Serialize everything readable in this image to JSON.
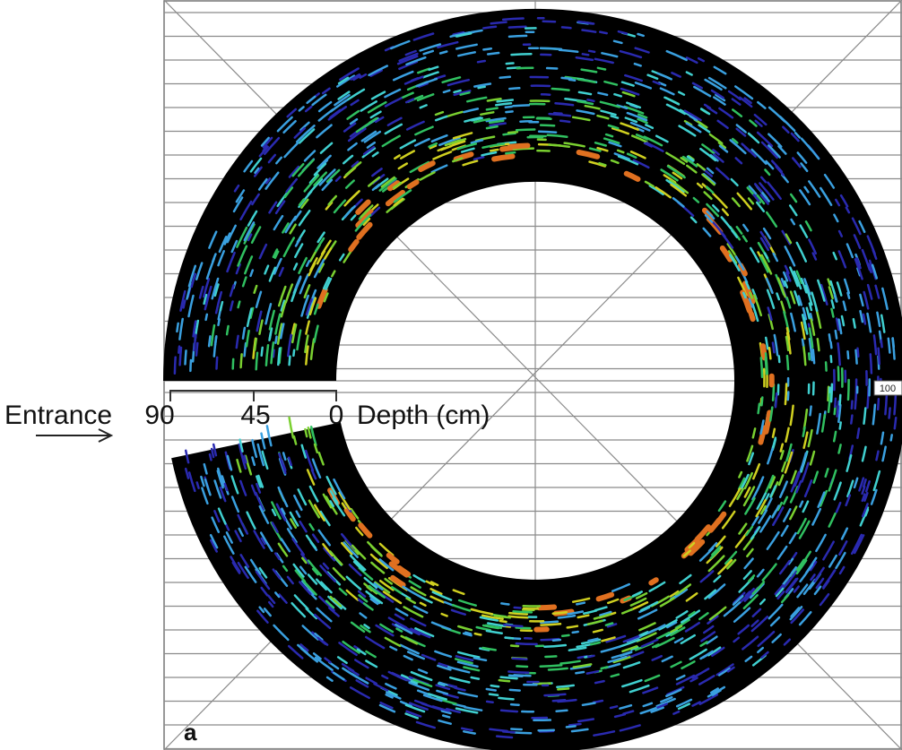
{
  "figure_label": "a",
  "entrance_label": "Entrance",
  "depth_scale": {
    "label": "Depth (cm)",
    "ticks": [
      "90",
      "45",
      "0"
    ]
  },
  "edge_marker": "100"
}
